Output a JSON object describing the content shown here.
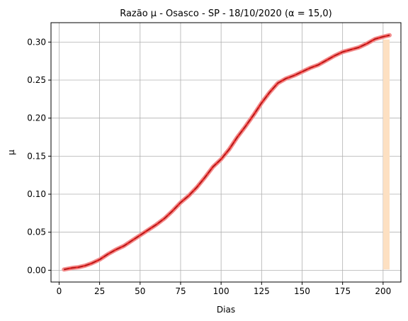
{
  "chart_data": {
    "type": "line",
    "title": "Razão μ - Osasco - SP - 18/10/2020 (α = 15,0)",
    "xlabel": "Dias",
    "ylabel": "μ",
    "xlim": [
      -5,
      211
    ],
    "ylim": [
      -0.0155,
      0.3255
    ],
    "xticks": [
      0,
      25,
      50,
      75,
      100,
      125,
      150,
      175,
      200
    ],
    "xtick_labels": [
      "0",
      "25",
      "50",
      "75",
      "100",
      "125",
      "150",
      "175",
      "200"
    ],
    "yticks": [
      0.0,
      0.05,
      0.1,
      0.15,
      0.2,
      0.25,
      0.3
    ],
    "ytick_labels": [
      "0.00",
      "0.05",
      "0.10",
      "0.15",
      "0.20",
      "0.25",
      "0.30"
    ],
    "grid": true,
    "band": {
      "x_start": 200,
      "x_end": 204,
      "color": "#ffe4c4"
    },
    "colors": {
      "band_fill": "#fde0c2",
      "line": "#e8201e",
      "line_dash": "#b01818",
      "envelope": "#f28c8c"
    },
    "series": [
      {
        "x": [
          3,
          8,
          12,
          16,
          20,
          25,
          30,
          35,
          40,
          45,
          50,
          55,
          60,
          65,
          70,
          75,
          80,
          85,
          90,
          95,
          100,
          105,
          110,
          115,
          120,
          125,
          130,
          135,
          140,
          145,
          150,
          155,
          160,
          165,
          170,
          175,
          180,
          185,
          190,
          195,
          200,
          204
        ],
        "values": [
          0.001,
          0.003,
          0.004,
          0.006,
          0.009,
          0.014,
          0.021,
          0.027,
          0.032,
          0.039,
          0.046,
          0.053,
          0.06,
          0.068,
          0.078,
          0.089,
          0.098,
          0.109,
          0.122,
          0.136,
          0.146,
          0.159,
          0.175,
          0.189,
          0.204,
          0.22,
          0.234,
          0.246,
          0.252,
          0.256,
          0.261,
          0.266,
          0.27,
          0.276,
          0.282,
          0.287,
          0.29,
          0.293,
          0.298,
          0.304,
          0.307,
          0.309
        ]
      }
    ]
  }
}
